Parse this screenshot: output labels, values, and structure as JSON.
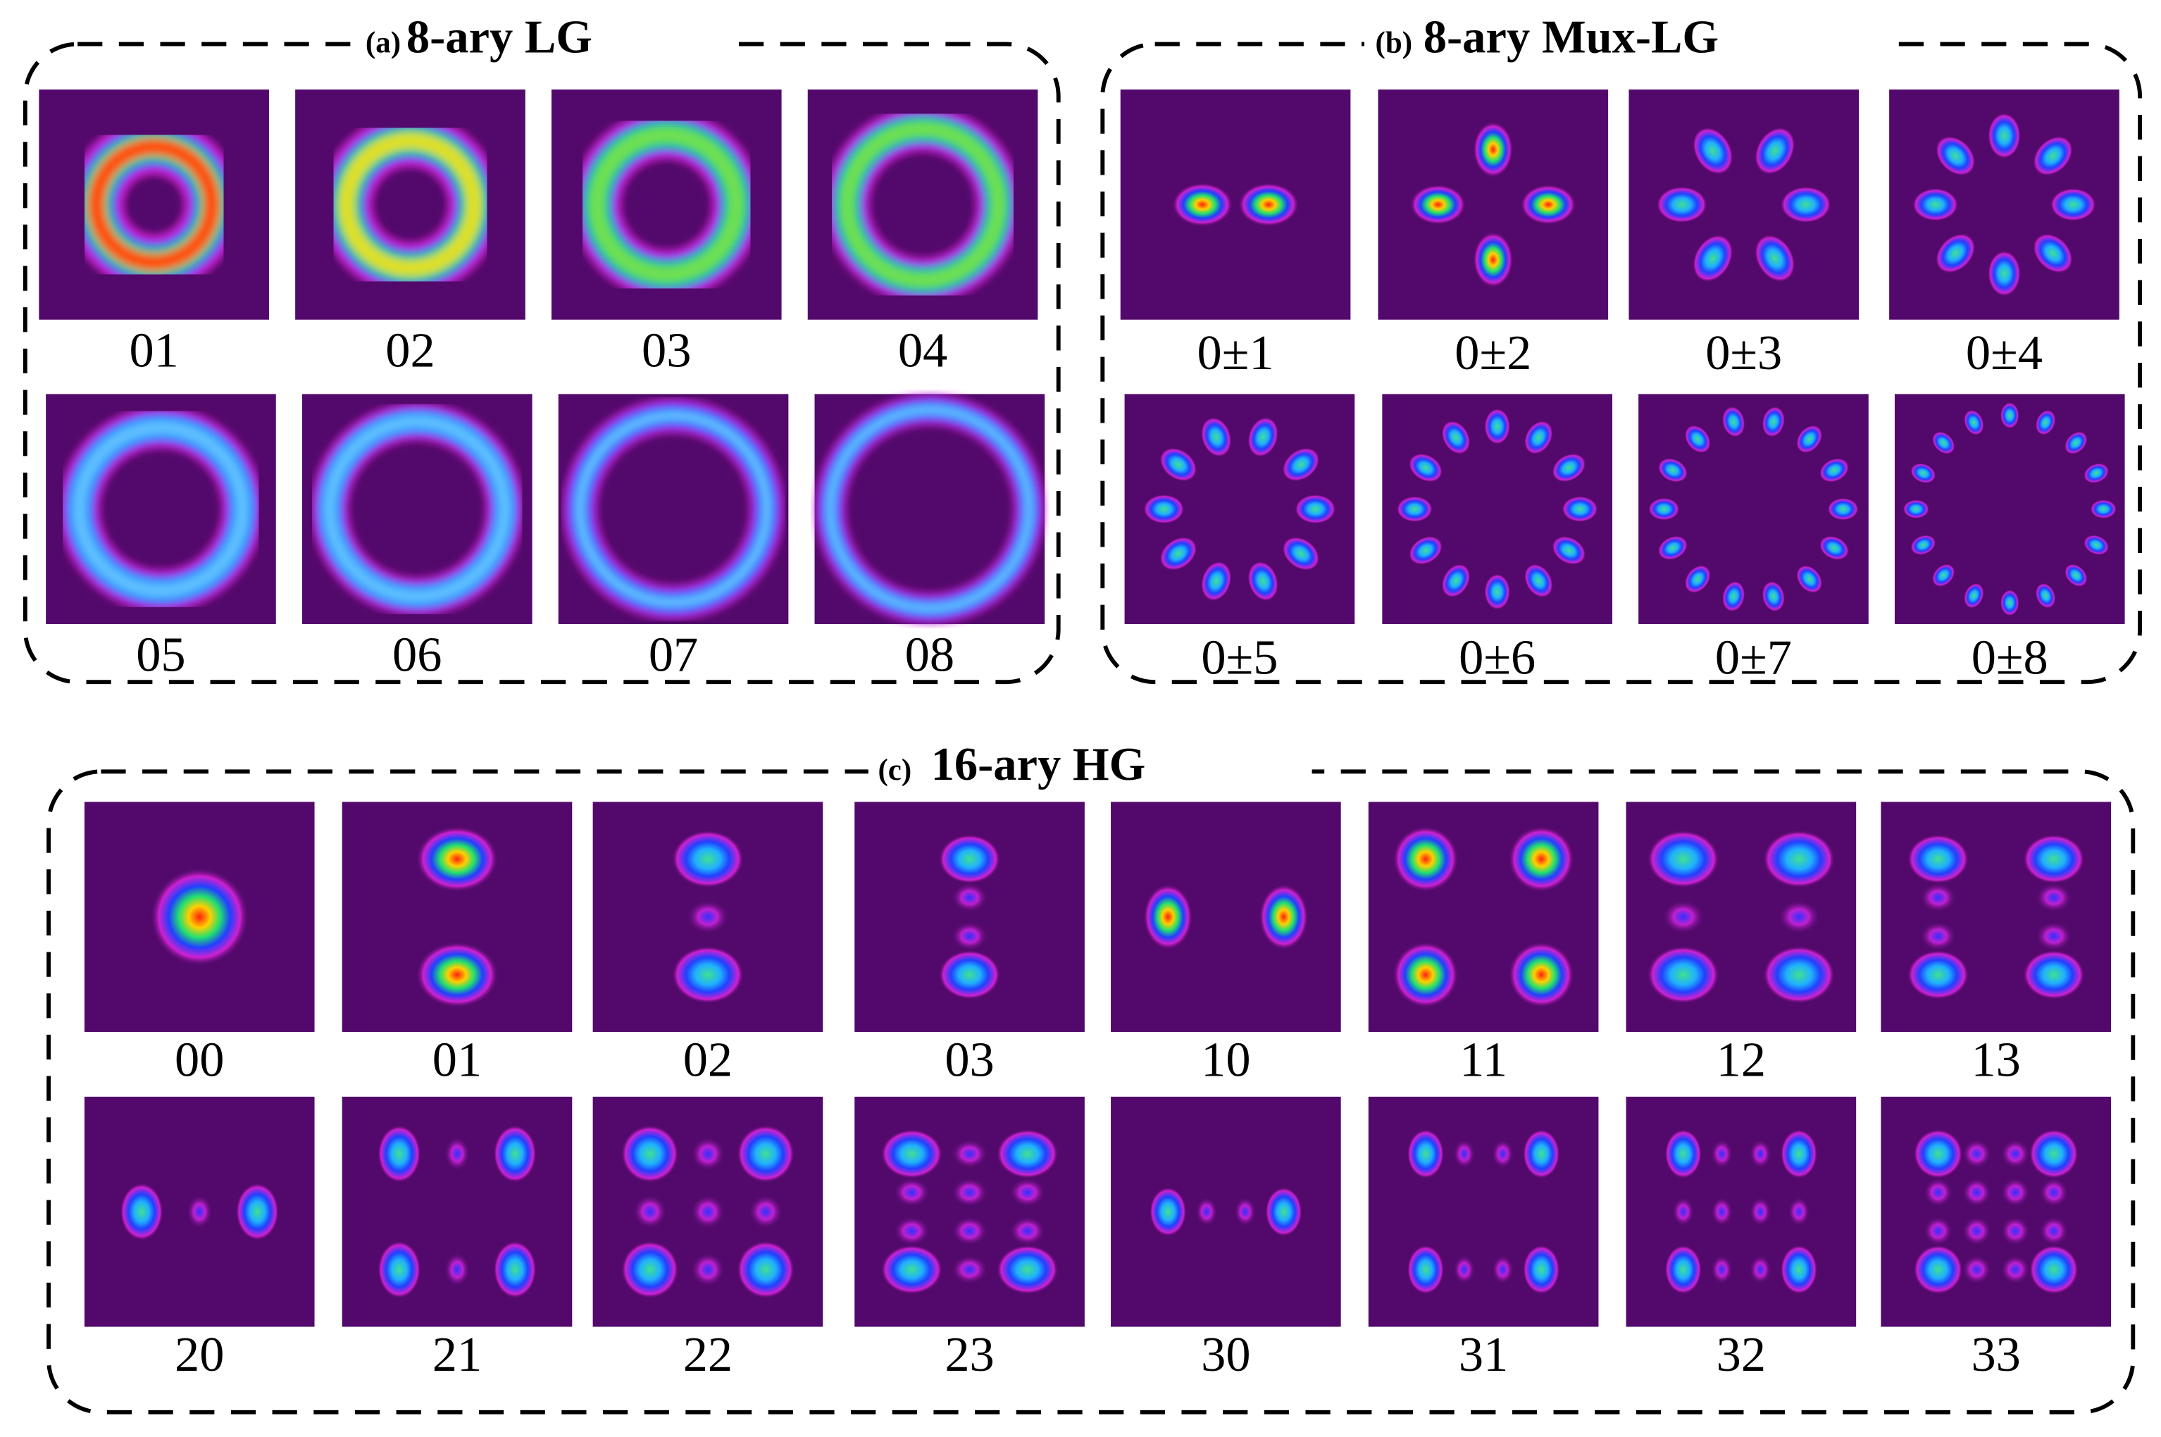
{
  "panels": [
    {
      "tag": "(a)",
      "title": "8-ary LG",
      "labels": [
        "01",
        "02",
        "03",
        "04",
        "05",
        "06",
        "07",
        "08"
      ]
    },
    {
      "tag": "(b)",
      "title": "8-ary Mux-LG",
      "labels": [
        "0±1",
        "0±2",
        "0±3",
        "0±4",
        "0±5",
        "0±6",
        "0±7",
        "0±8"
      ]
    },
    {
      "tag": "(c)",
      "title": "16-ary HG",
      "labels": [
        "00",
        "01",
        "02",
        "03",
        "10",
        "11",
        "12",
        "13",
        "20",
        "21",
        "22",
        "23",
        "30",
        "31",
        "32",
        "33"
      ]
    }
  ]
}
